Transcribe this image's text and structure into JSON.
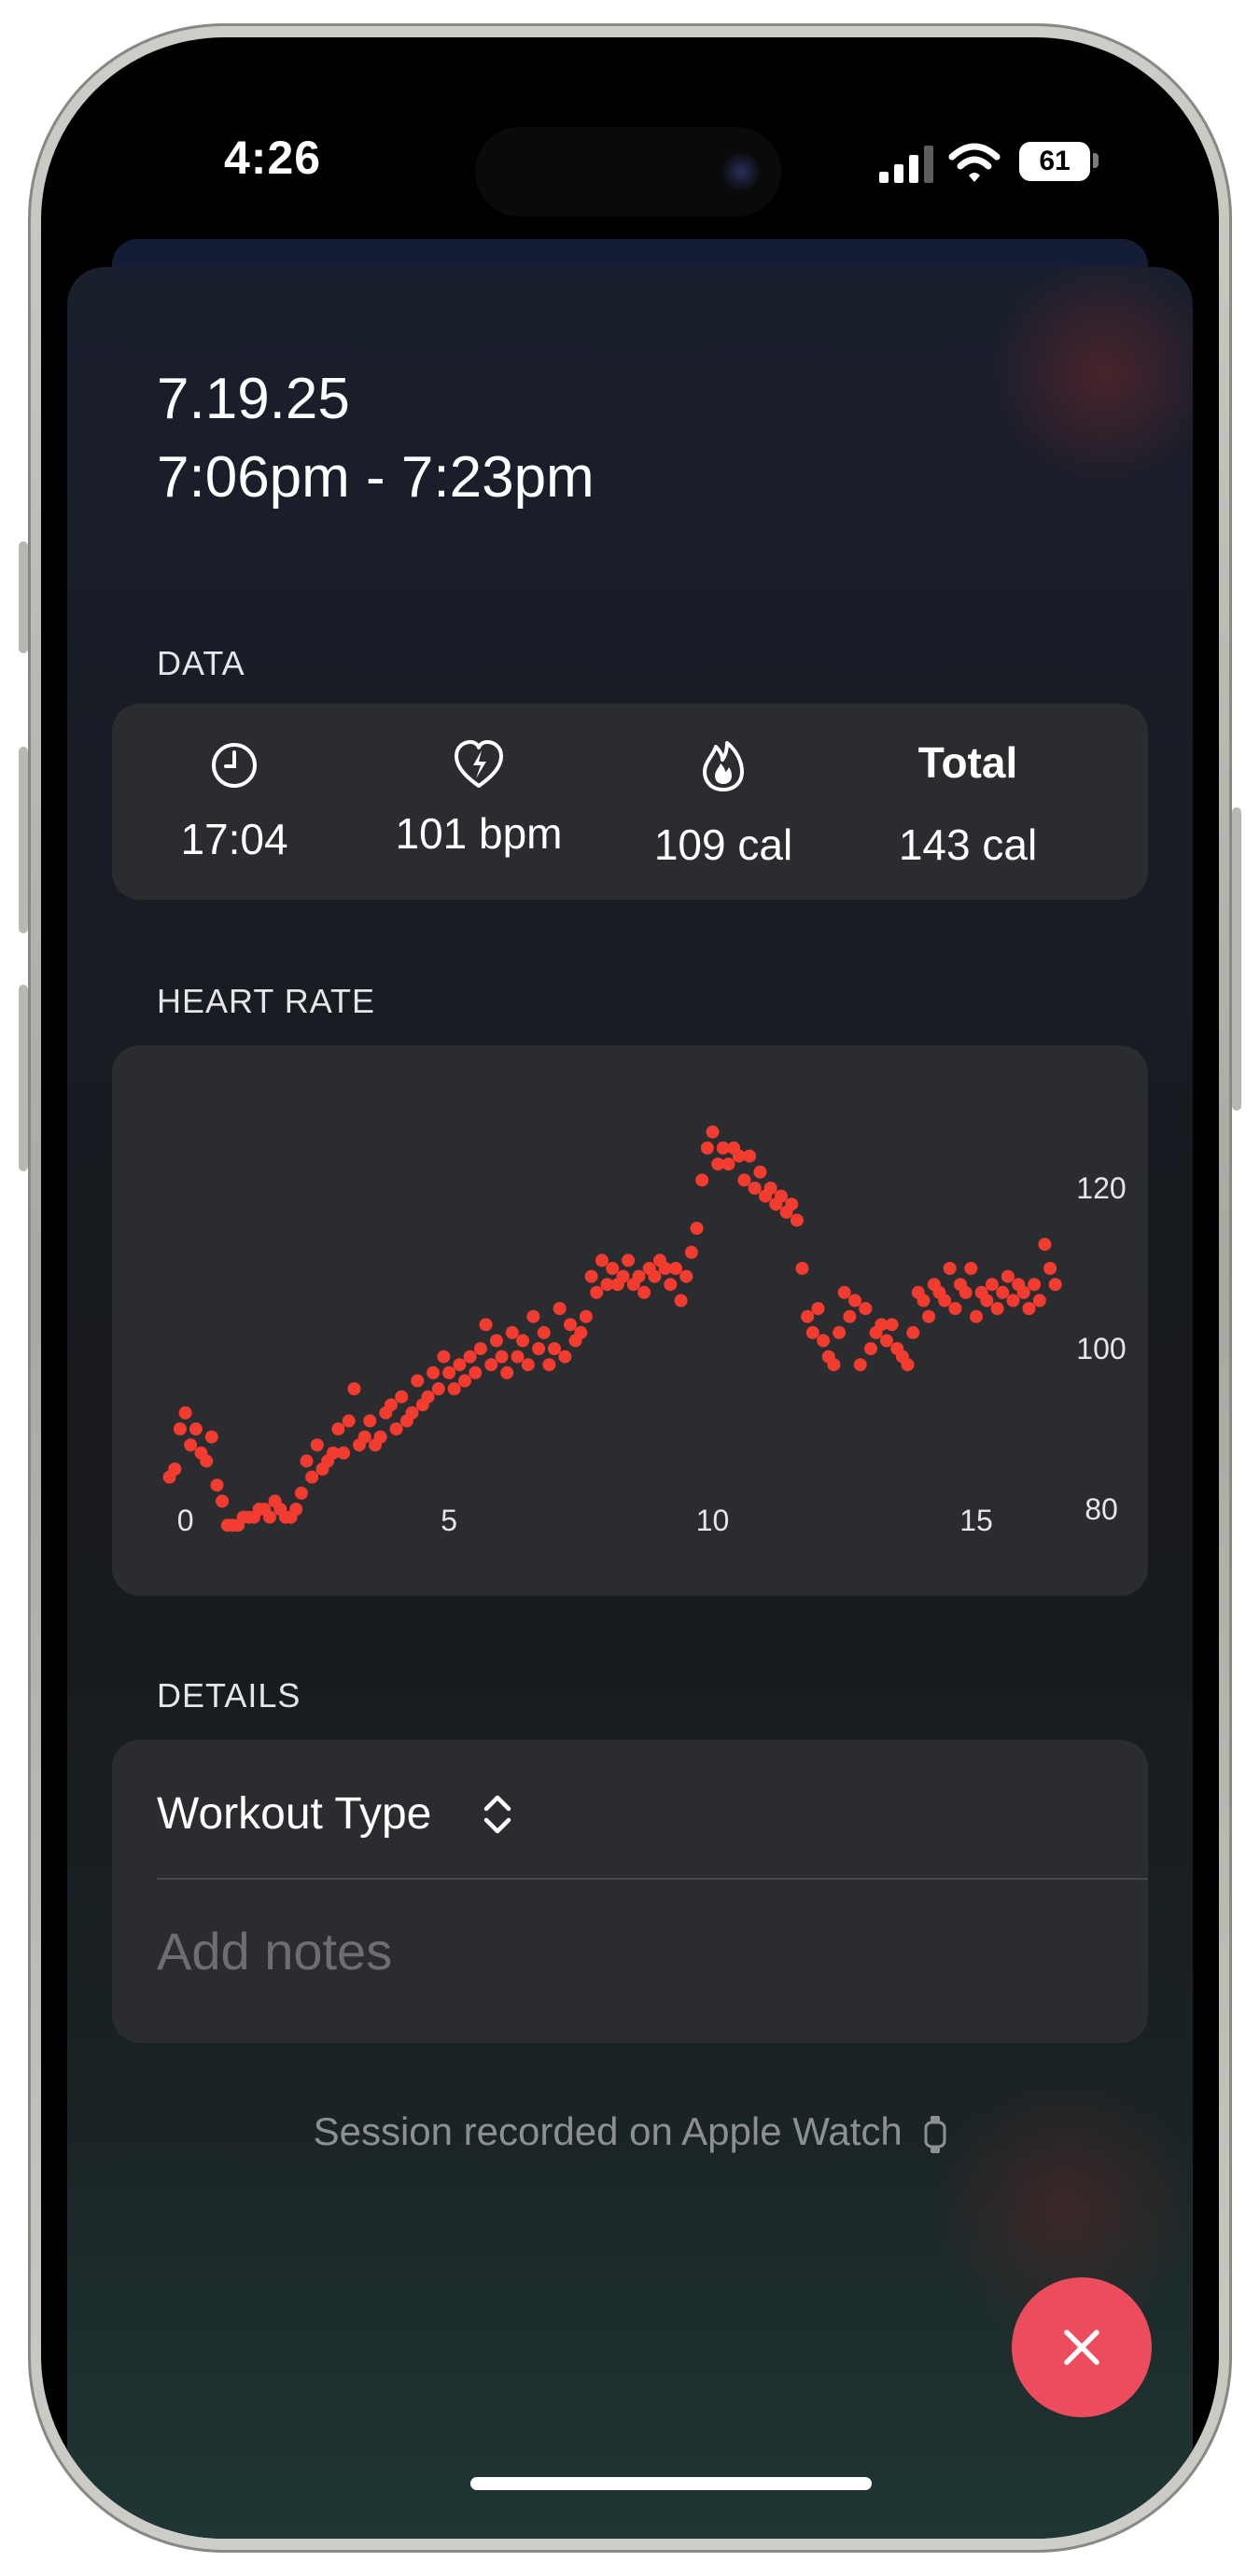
{
  "status_bar": {
    "time": "4:26",
    "battery": "61",
    "icons": [
      "signal-icon",
      "wifi-icon",
      "battery-icon"
    ]
  },
  "session": {
    "date": "7.19.25",
    "time_range": "7:06pm - 7:23pm"
  },
  "data_section": {
    "label": "DATA",
    "stats": [
      {
        "icon": "clock-icon",
        "value": "17:04"
      },
      {
        "icon": "heart-bolt-icon",
        "value": "101 bpm"
      },
      {
        "icon": "flame-icon",
        "value": "109 cal"
      },
      {
        "heading": "Total",
        "value": "143 cal"
      }
    ]
  },
  "heart_rate_section": {
    "label": "HEART RATE"
  },
  "chart_data": {
    "type": "scatter",
    "title": "",
    "xlabel": "",
    "ylabel": "",
    "x_ticks": [
      "0",
      "5",
      "10",
      "15"
    ],
    "y_ticks": [
      "80",
      "100",
      "120"
    ],
    "xlim": [
      -0.4,
      16.7
    ],
    "ylim": [
      75,
      135
    ],
    "color": "#f23c30",
    "grid": false,
    "y_axis_position": "right",
    "series": [
      {
        "points": [
          [
            -0.3,
            84
          ],
          [
            -0.2,
            85
          ],
          [
            -0.1,
            90
          ],
          [
            0.0,
            92
          ],
          [
            0.1,
            88
          ],
          [
            0.2,
            90
          ],
          [
            0.3,
            87
          ],
          [
            0.4,
            86
          ],
          [
            0.5,
            89
          ],
          [
            0.6,
            83
          ],
          [
            0.7,
            81
          ],
          [
            0.8,
            78
          ],
          [
            0.9,
            78
          ],
          [
            1.0,
            78
          ],
          [
            1.1,
            79
          ],
          [
            1.2,
            79
          ],
          [
            1.3,
            79
          ],
          [
            1.4,
            80
          ],
          [
            1.5,
            80
          ],
          [
            1.6,
            79
          ],
          [
            1.7,
            81
          ],
          [
            1.8,
            80
          ],
          [
            1.9,
            79
          ],
          [
            2.0,
            79
          ],
          [
            2.1,
            80
          ],
          [
            2.2,
            82
          ],
          [
            2.3,
            86
          ],
          [
            2.4,
            84
          ],
          [
            2.5,
            88
          ],
          [
            2.6,
            85
          ],
          [
            2.7,
            86
          ],
          [
            2.8,
            87
          ],
          [
            2.9,
            90
          ],
          [
            3.0,
            87
          ],
          [
            3.1,
            91
          ],
          [
            3.2,
            95
          ],
          [
            3.3,
            88
          ],
          [
            3.4,
            89
          ],
          [
            3.5,
            91
          ],
          [
            3.6,
            88
          ],
          [
            3.7,
            89
          ],
          [
            3.8,
            92
          ],
          [
            3.9,
            93
          ],
          [
            4.0,
            90
          ],
          [
            4.1,
            94
          ],
          [
            4.2,
            91
          ],
          [
            4.3,
            92
          ],
          [
            4.4,
            96
          ],
          [
            4.5,
            93
          ],
          [
            4.6,
            94
          ],
          [
            4.7,
            97
          ],
          [
            4.8,
            95
          ],
          [
            4.9,
            99
          ],
          [
            5.0,
            97
          ],
          [
            5.1,
            95
          ],
          [
            5.2,
            98
          ],
          [
            5.3,
            96
          ],
          [
            5.4,
            99
          ],
          [
            5.5,
            97
          ],
          [
            5.6,
            100
          ],
          [
            5.7,
            103
          ],
          [
            5.8,
            98
          ],
          [
            5.9,
            101
          ],
          [
            6.0,
            99
          ],
          [
            6.1,
            97
          ],
          [
            6.2,
            102
          ],
          [
            6.3,
            99
          ],
          [
            6.4,
            101
          ],
          [
            6.5,
            98
          ],
          [
            6.6,
            104
          ],
          [
            6.7,
            100
          ],
          [
            6.8,
            102
          ],
          [
            6.9,
            98
          ],
          [
            7.0,
            100
          ],
          [
            7.1,
            105
          ],
          [
            7.2,
            99
          ],
          [
            7.3,
            103
          ],
          [
            7.4,
            101
          ],
          [
            7.5,
            102
          ],
          [
            7.6,
            104
          ],
          [
            7.7,
            109
          ],
          [
            7.8,
            107
          ],
          [
            7.9,
            111
          ],
          [
            8.0,
            108
          ],
          [
            8.1,
            110
          ],
          [
            8.2,
            108
          ],
          [
            8.3,
            109
          ],
          [
            8.4,
            111
          ],
          [
            8.5,
            108
          ],
          [
            8.6,
            109
          ],
          [
            8.7,
            107
          ],
          [
            8.8,
            110
          ],
          [
            8.9,
            109
          ],
          [
            9.0,
            111
          ],
          [
            9.1,
            110
          ],
          [
            9.2,
            108
          ],
          [
            9.3,
            110
          ],
          [
            9.4,
            106
          ],
          [
            9.5,
            109
          ],
          [
            9.6,
            112
          ],
          [
            9.7,
            115
          ],
          [
            9.8,
            121
          ],
          [
            9.9,
            125
          ],
          [
            10.0,
            127
          ],
          [
            10.1,
            123
          ],
          [
            10.2,
            125
          ],
          [
            10.3,
            123
          ],
          [
            10.4,
            125
          ],
          [
            10.5,
            124
          ],
          [
            10.6,
            121
          ],
          [
            10.7,
            124
          ],
          [
            10.8,
            120
          ],
          [
            10.9,
            122
          ],
          [
            11.0,
            119
          ],
          [
            11.1,
            120
          ],
          [
            11.2,
            118
          ],
          [
            11.3,
            119
          ],
          [
            11.4,
            117
          ],
          [
            11.5,
            118
          ],
          [
            11.6,
            116
          ],
          [
            11.7,
            110
          ],
          [
            11.8,
            104
          ],
          [
            11.9,
            102
          ],
          [
            12.0,
            105
          ],
          [
            12.1,
            101
          ],
          [
            12.2,
            99
          ],
          [
            12.3,
            98
          ],
          [
            12.4,
            102
          ],
          [
            12.5,
            107
          ],
          [
            12.6,
            104
          ],
          [
            12.7,
            106
          ],
          [
            12.8,
            98
          ],
          [
            12.9,
            105
          ],
          [
            13.0,
            100
          ],
          [
            13.1,
            102
          ],
          [
            13.2,
            103
          ],
          [
            13.3,
            101
          ],
          [
            13.4,
            103
          ],
          [
            13.5,
            100
          ],
          [
            13.6,
            99
          ],
          [
            13.7,
            98
          ],
          [
            13.8,
            102
          ],
          [
            13.9,
            107
          ],
          [
            14.0,
            106
          ],
          [
            14.1,
            104
          ],
          [
            14.2,
            108
          ],
          [
            14.3,
            107
          ],
          [
            14.4,
            106
          ],
          [
            14.5,
            110
          ],
          [
            14.6,
            105
          ],
          [
            14.7,
            108
          ],
          [
            14.8,
            107
          ],
          [
            14.9,
            110
          ],
          [
            15.0,
            104
          ],
          [
            15.1,
            107
          ],
          [
            15.2,
            106
          ],
          [
            15.3,
            108
          ],
          [
            15.4,
            105
          ],
          [
            15.5,
            107
          ],
          [
            15.6,
            109
          ],
          [
            15.7,
            106
          ],
          [
            15.8,
            108
          ],
          [
            15.9,
            107
          ],
          [
            16.0,
            105
          ],
          [
            16.1,
            108
          ],
          [
            16.2,
            106
          ],
          [
            16.3,
            113
          ],
          [
            16.4,
            110
          ],
          [
            16.5,
            108
          ]
        ]
      }
    ]
  },
  "details_section": {
    "label": "DETAILS",
    "workout_type_label": "Workout Type",
    "notes_placeholder": "Add notes"
  },
  "footer": {
    "text": "Session recorded on Apple Watch"
  },
  "colors": {
    "accent_red": "#ec4c5c",
    "chart_red": "#f23c30",
    "card_bg": "#2b2c2f"
  }
}
